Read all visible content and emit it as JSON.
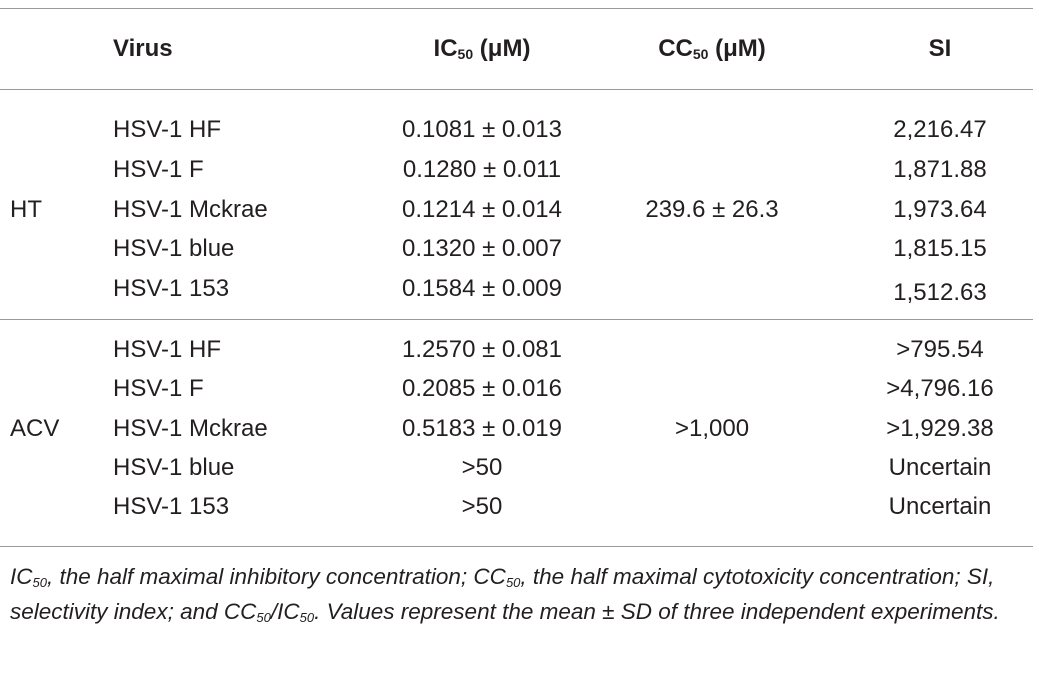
{
  "table": {
    "headers": {
      "virus": "Virus",
      "ic50": {
        "base": "IC",
        "sub": "50",
        "unit": " (μM)"
      },
      "cc50": {
        "base": "CC",
        "sub": "50",
        "unit": " (μM)"
      },
      "si": "SI"
    },
    "groups": [
      {
        "compound": "HT",
        "cc50": "239.6 ± 26.3",
        "rows": [
          {
            "virus": "HSV-1 HF",
            "ic50": "0.1081 ± 0.013",
            "si": "2,216.47"
          },
          {
            "virus": "HSV-1 F",
            "ic50": "0.1280 ± 0.011",
            "si": "1,871.88"
          },
          {
            "virus": "HSV-1 Mckrae",
            "ic50": "0.1214 ± 0.014",
            "si": "1,973.64"
          },
          {
            "virus": "HSV-1 blue",
            "ic50": "0.1320 ± 0.007",
            "si": "1,815.15"
          },
          {
            "virus": "HSV-1 153",
            "ic50": "0.1584 ± 0.009",
            "si": "1,512.63"
          }
        ]
      },
      {
        "compound": "ACV",
        "cc50": ">1,000",
        "rows": [
          {
            "virus": "HSV-1 HF",
            "ic50": "1.2570 ± 0.081",
            "si": ">795.54"
          },
          {
            "virus": "HSV-1 F",
            "ic50": "0.2085 ± 0.016",
            "si": ">4,796.16"
          },
          {
            "virus": "HSV-1 Mckrae",
            "ic50": "0.5183 ± 0.019",
            "si": ">1,929.38"
          },
          {
            "virus": "HSV-1 blue",
            "ic50": ">50",
            "si": "Uncertain"
          },
          {
            "virus": "HSV-1 153",
            "ic50": ">50",
            "si": "Uncertain"
          }
        ]
      }
    ]
  },
  "footnote": {
    "p1": "IC",
    "s1": "50",
    "p2": ", the half maximal inhibitory concentration; CC",
    "s2": "50",
    "p3": ", the half maximal cytotoxicity concentration; SI, selectivity index; and CC",
    "s3": "50",
    "p4": "/IC",
    "s4": "50",
    "p5": ". Values represent the mean ± SD of three independent experiments."
  }
}
